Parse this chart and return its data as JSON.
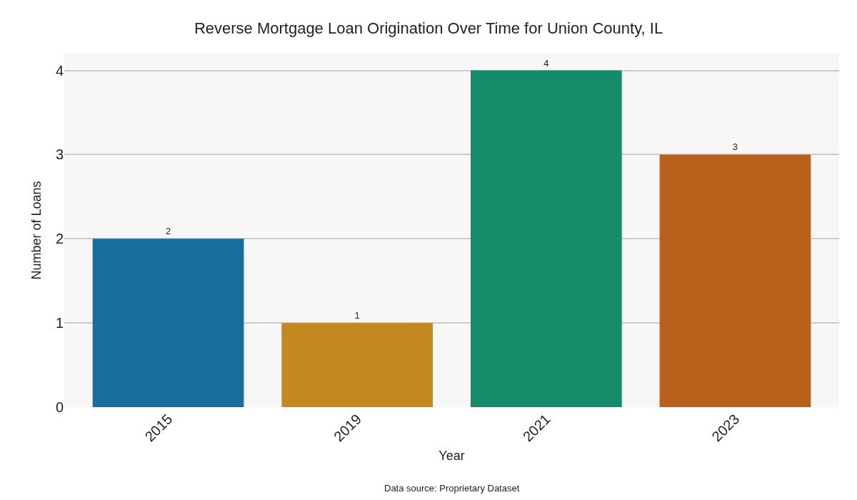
{
  "chart_data": {
    "type": "bar",
    "title": "Reverse Mortgage Loan Origination Over Time for Union County, IL",
    "xlabel": "Year",
    "ylabel": "Number of Loans",
    "categories": [
      "2015",
      "2019",
      "2021",
      "2023"
    ],
    "values": [
      2,
      1,
      4,
      3
    ],
    "colors": [
      "#176d9c",
      "#c38820",
      "#158b6a",
      "#b9611c"
    ],
    "ylim": [
      0,
      4.2
    ],
    "yticks": [
      0,
      1,
      2,
      3,
      4
    ],
    "grid": "y",
    "data_labels": true,
    "annotations": [
      "Data source: Proprietary Dataset"
    ]
  }
}
